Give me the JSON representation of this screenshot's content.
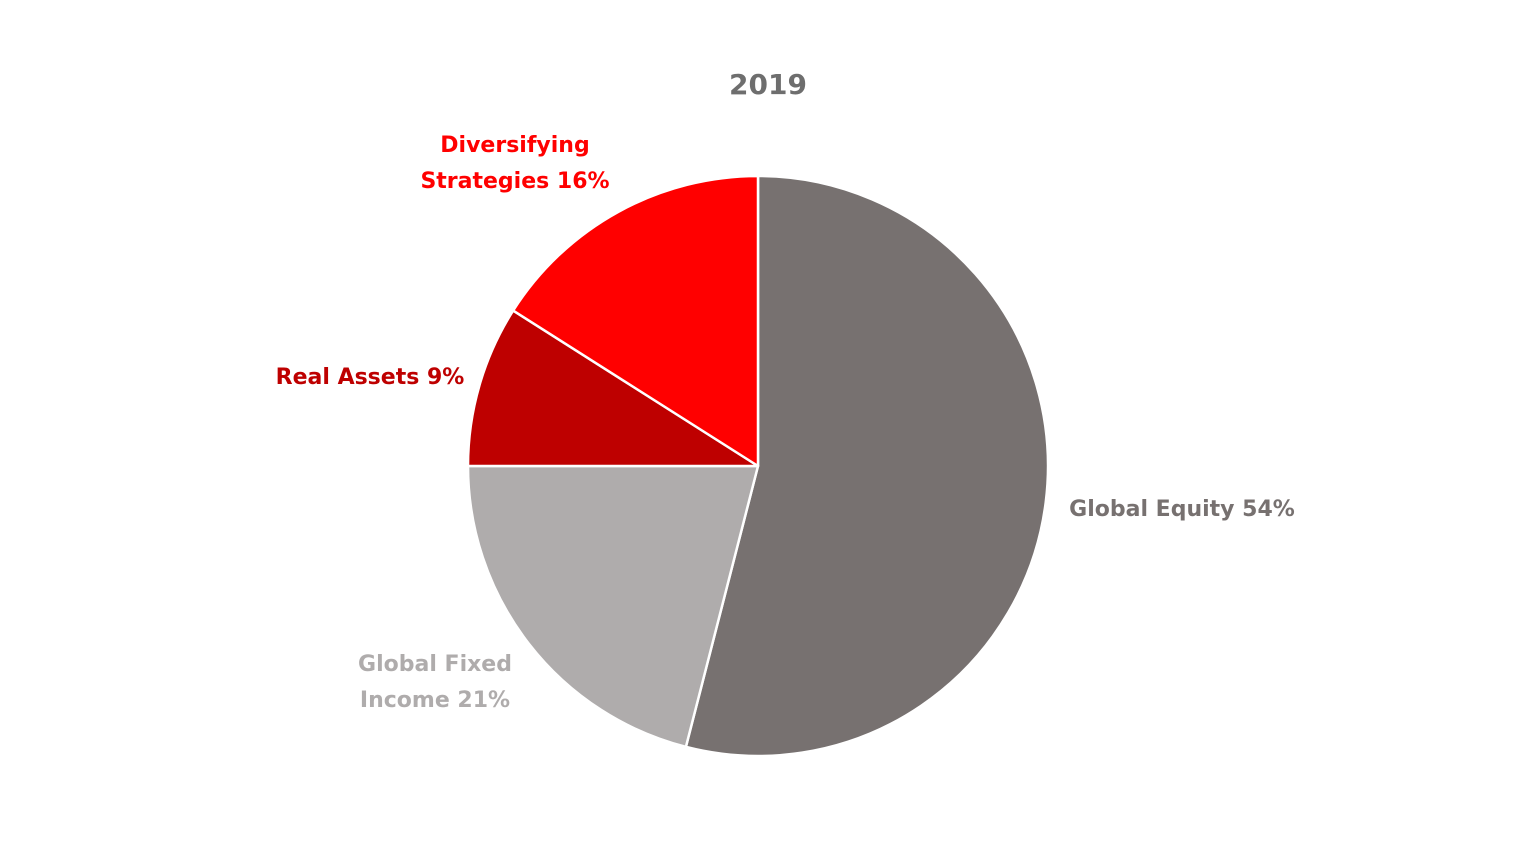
{
  "chart_data": {
    "type": "pie",
    "title": "2019",
    "start_angle_deg": 0,
    "direction": "clockwise",
    "slices": [
      {
        "label_lines": [
          "Global Equity 54%"
        ],
        "value": 54,
        "color": "#777170",
        "label_color": "#777170"
      },
      {
        "label_lines": [
          "Global Fixed",
          "Income 21%"
        ],
        "value": 21,
        "color": "#afacac",
        "label_color": "#afacac"
      },
      {
        "label_lines": [
          "Real Assets 9%"
        ],
        "value": 9,
        "color": "#be0000",
        "label_color": "#be0000"
      },
      {
        "label_lines": [
          "Diversifying",
          "Strategies 16%"
        ],
        "value": 16,
        "color": "#ff0000",
        "label_color": "#ff0000"
      }
    ]
  }
}
